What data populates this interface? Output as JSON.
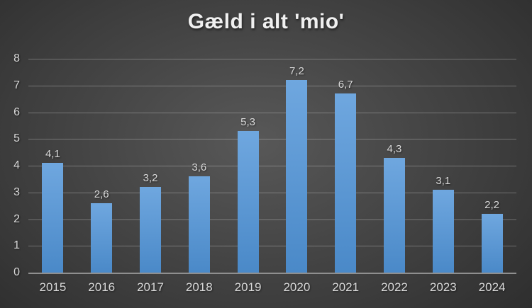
{
  "chart_data": {
    "type": "bar",
    "title": "Gæld i alt 'mio'",
    "categories": [
      "2015",
      "2016",
      "2017",
      "2018",
      "2019",
      "2020",
      "2021",
      "2022",
      "2023",
      "2024"
    ],
    "values": [
      4.1,
      2.6,
      3.2,
      3.6,
      5.3,
      7.2,
      6.7,
      4.3,
      3.1,
      2.2
    ],
    "data_labels": [
      "4,1",
      "2,6",
      "3,2",
      "3,6",
      "5,3",
      "7,2",
      "6,7",
      "4,3",
      "3,1",
      "2,2"
    ],
    "xlabel": "",
    "ylabel": "",
    "ylim": [
      0,
      8
    ],
    "ytick_step": 1,
    "yticks": [
      "0",
      "1",
      "2",
      "3",
      "4",
      "5",
      "6",
      "7",
      "8"
    ],
    "grid": true,
    "legend": false,
    "decimal_separator": ",",
    "colors": {
      "bar_top": "#6FA7DF",
      "bar_bottom": "#4A89C8",
      "background_center": "#585858",
      "background_edge": "#262626",
      "gridline": "rgba(255,255,255,0.28)",
      "axis_line": "#8F8F8F",
      "title_text": "#F0F0F0",
      "label_text": "#D9D9D9"
    }
  }
}
